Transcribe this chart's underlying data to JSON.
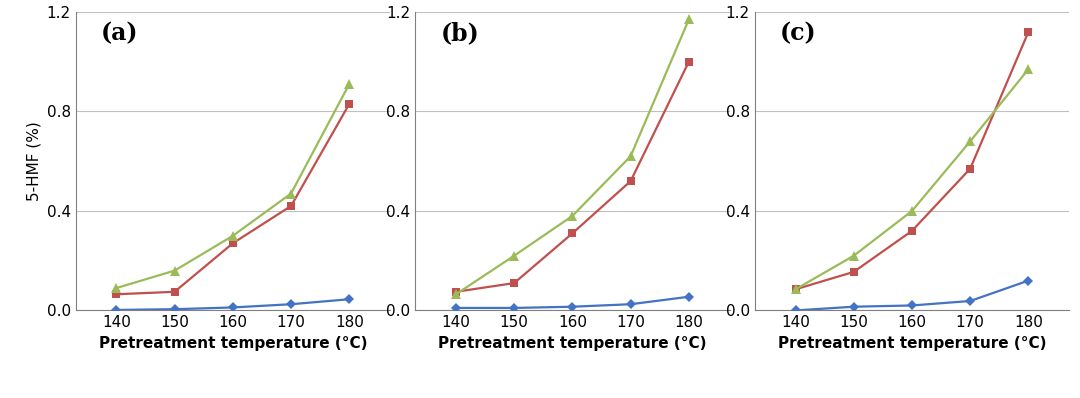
{
  "x": [
    140,
    150,
    160,
    170,
    180
  ],
  "panels": [
    {
      "label": "(a)",
      "blue": [
        0.002,
        0.005,
        0.012,
        0.025,
        0.045
      ],
      "red": [
        0.065,
        0.075,
        0.27,
        0.42,
        0.83
      ],
      "green": [
        0.09,
        0.16,
        0.3,
        0.47,
        0.91
      ]
    },
    {
      "label": "(b)",
      "blue": [
        0.01,
        0.01,
        0.015,
        0.025,
        0.055
      ],
      "red": [
        0.075,
        0.11,
        0.31,
        0.52,
        1.0
      ],
      "green": [
        0.065,
        0.22,
        0.38,
        0.62,
        1.17
      ]
    },
    {
      "label": "(c)",
      "blue": [
        0.0,
        0.015,
        0.02,
        0.038,
        0.12
      ],
      "red": [
        0.085,
        0.155,
        0.32,
        0.57,
        1.12
      ],
      "green": [
        0.085,
        0.22,
        0.4,
        0.68,
        0.97
      ]
    }
  ],
  "ylim": [
    0.0,
    1.2
  ],
  "yticks": [
    0.0,
    0.4,
    0.8,
    1.2
  ],
  "xlabel": "Pretreatment temperature (°C)",
  "ylabel": "5-HMF (%)",
  "blue_color": "#4472C4",
  "red_color": "#C0504D",
  "green_color": "#9BBB59",
  "background": "#FFFFFF",
  "label_fontsize": 17,
  "tick_fontsize": 11,
  "axis_label_fontsize": 11,
  "grid_color": "#C0C0C0",
  "spine_color": "#808080"
}
